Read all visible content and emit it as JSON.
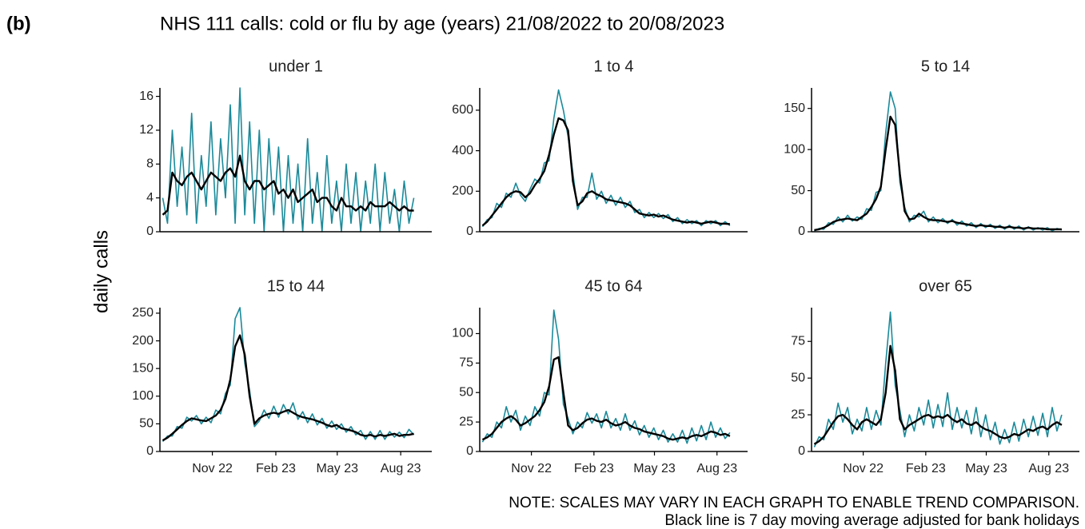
{
  "label": "(b)",
  "title": "NHS 111 calls: cold or flu by age (years) 21/08/2022 to 20/08/2023",
  "ylabel": "daily calls",
  "notes": [
    "NOTE: SCALES MAY VARY IN EACH GRAPH TO ENABLE TREND COMPARISON.",
    "Black line is 7 day moving average adjusted for bank holidays"
  ],
  "chart_data": [
    {
      "type": "line",
      "title": "under 1",
      "x": [
        0,
        7,
        14,
        21,
        28,
        35,
        42,
        49,
        56,
        63,
        70,
        77,
        84,
        91,
        98,
        105,
        112,
        119,
        126,
        133,
        140,
        147,
        154,
        161,
        168,
        175,
        182,
        189,
        196,
        203,
        210,
        217,
        224,
        231,
        238,
        245,
        252,
        259,
        266,
        273,
        280,
        287,
        294,
        301,
        308,
        315,
        322,
        329,
        336,
        343,
        350,
        357,
        364
      ],
      "xlim": [
        -4,
        390
      ],
      "ylim": [
        0,
        17
      ],
      "yticks": [
        0,
        4,
        8,
        12,
        16
      ],
      "series": [
        {
          "color": "#1b8a9a",
          "values": [
            4,
            1,
            12,
            3,
            10,
            2,
            14,
            1,
            9,
            3,
            13,
            2,
            11,
            4,
            15,
            1,
            17,
            2,
            13,
            1,
            12,
            0,
            11,
            2,
            10,
            0,
            9,
            1,
            8,
            0,
            11,
            1,
            7,
            0,
            9,
            1,
            6,
            0,
            8,
            1,
            7,
            0,
            6,
            1,
            8,
            0,
            7,
            1,
            5,
            0,
            6,
            1,
            4
          ]
        },
        {
          "color": "#000000",
          "values": [
            2,
            2.5,
            7,
            6,
            5.5,
            6.5,
            7,
            6,
            5,
            6,
            7,
            6.5,
            6,
            7,
            7.5,
            6.5,
            9,
            6,
            5,
            6,
            6,
            5,
            5.5,
            6,
            4.5,
            5,
            4,
            5,
            3.5,
            4,
            4.5,
            5,
            3.5,
            4,
            4,
            3,
            2.5,
            4,
            3,
            3,
            2.5,
            3,
            2.5,
            3.5,
            3,
            3,
            3,
            3.5,
            3,
            2.5,
            3,
            2.5,
            2.5
          ]
        }
      ]
    },
    {
      "type": "line",
      "title": "1 to 4",
      "x": [
        0,
        7,
        14,
        21,
        28,
        35,
        42,
        49,
        56,
        63,
        70,
        77,
        84,
        91,
        98,
        105,
        112,
        119,
        126,
        133,
        140,
        147,
        154,
        161,
        168,
        175,
        182,
        189,
        196,
        203,
        210,
        217,
        224,
        231,
        238,
        245,
        252,
        259,
        266,
        273,
        280,
        287,
        294,
        301,
        308,
        315,
        322,
        329,
        336,
        343,
        350,
        357,
        364
      ],
      "xlim": [
        -4,
        390
      ],
      "ylim": [
        0,
        710
      ],
      "yticks": [
        0,
        200,
        400,
        600
      ],
      "series": [
        {
          "color": "#1b8a9a",
          "values": [
            25,
            60,
            70,
            140,
            120,
            190,
            170,
            240,
            180,
            150,
            210,
            260,
            240,
            340,
            350,
            560,
            700,
            600,
            470,
            290,
            110,
            170,
            170,
            290,
            160,
            200,
            140,
            180,
            130,
            170,
            120,
            150,
            95,
            110,
            70,
            95,
            70,
            90,
            65,
            85,
            50,
            70,
            40,
            60,
            40,
            55,
            30,
            55,
            40,
            55,
            30,
            50,
            30
          ]
        },
        {
          "color": "#000000",
          "values": [
            30,
            50,
            80,
            110,
            140,
            170,
            190,
            200,
            195,
            170,
            190,
            230,
            260,
            300,
            380,
            480,
            560,
            550,
            500,
            250,
            130,
            150,
            190,
            200,
            185,
            175,
            160,
            155,
            150,
            145,
            140,
            130,
            110,
            90,
            85,
            80,
            85,
            75,
            80,
            70,
            60,
            55,
            50,
            45,
            50,
            45,
            40,
            45,
            50,
            45,
            40,
            40,
            38
          ]
        }
      ]
    },
    {
      "type": "line",
      "title": "5 to 14",
      "x": [
        0,
        7,
        14,
        21,
        28,
        35,
        42,
        49,
        56,
        63,
        70,
        77,
        84,
        91,
        98,
        105,
        112,
        119,
        126,
        133,
        140,
        147,
        154,
        161,
        168,
        175,
        182,
        189,
        196,
        203,
        210,
        217,
        224,
        231,
        238,
        245,
        252,
        259,
        266,
        273,
        280,
        287,
        294,
        301,
        308,
        315,
        322,
        329,
        336,
        343,
        350,
        357,
        364
      ],
      "xlim": [
        -4,
        390
      ],
      "ylim": [
        0,
        175
      ],
      "yticks": [
        0,
        50,
        100,
        150
      ],
      "series": [
        {
          "color": "#1b8a9a",
          "values": [
            1,
            4,
            3,
            11,
            9,
            18,
            12,
            20,
            13,
            18,
            15,
            28,
            26,
            48,
            50,
            120,
            170,
            150,
            60,
            30,
            12,
            20,
            18,
            25,
            12,
            18,
            11,
            16,
            10,
            15,
            8,
            13,
            7,
            11,
            5,
            10,
            5,
            9,
            4,
            8,
            3,
            8,
            3,
            7,
            2,
            6,
            2,
            5,
            2,
            5,
            1,
            4,
            2
          ]
        },
        {
          "color": "#000000",
          "values": [
            2,
            3,
            5,
            8,
            12,
            14,
            15,
            16,
            15,
            14,
            18,
            22,
            30,
            40,
            55,
            100,
            140,
            130,
            70,
            25,
            15,
            16,
            22,
            18,
            15,
            14,
            14,
            13,
            12,
            13,
            11,
            10,
            9,
            8,
            7,
            8,
            7,
            7,
            6,
            6,
            5,
            6,
            5,
            5,
            4,
            5,
            4,
            4,
            4,
            3,
            3,
            3,
            3
          ]
        }
      ]
    },
    {
      "type": "line",
      "title": "15 to 44",
      "x": [
        0,
        7,
        14,
        21,
        28,
        35,
        42,
        49,
        56,
        63,
        70,
        77,
        84,
        91,
        98,
        105,
        112,
        119,
        126,
        133,
        140,
        147,
        154,
        161,
        168,
        175,
        182,
        189,
        196,
        203,
        210,
        217,
        224,
        231,
        238,
        245,
        252,
        259,
        266,
        273,
        280,
        287,
        294,
        301,
        308,
        315,
        322,
        329,
        336,
        343,
        350,
        357,
        364
      ],
      "xlim": [
        -4,
        390
      ],
      "ylim": [
        0,
        260
      ],
      "yticks": [
        0,
        50,
        100,
        150,
        200,
        250
      ],
      "xticks": [
        {
          "value": 72,
          "label": "Nov 22"
        },
        {
          "value": 164,
          "label": "Feb 23"
        },
        {
          "value": 253,
          "label": "May 23"
        },
        {
          "value": 345,
          "label": "Aug 23"
        }
      ],
      "series": [
        {
          "color": "#1b8a9a",
          "values": [
            18,
            28,
            28,
            45,
            42,
            62,
            55,
            65,
            50,
            62,
            52,
            75,
            68,
            105,
            120,
            240,
            260,
            160,
            110,
            45,
            55,
            75,
            60,
            82,
            62,
            85,
            68,
            88,
            58,
            72,
            52,
            68,
            48,
            60,
            42,
            55,
            40,
            50,
            35,
            45,
            30,
            38,
            22,
            36,
            22,
            38,
            22,
            36,
            26,
            35,
            25,
            40,
            30
          ]
        },
        {
          "color": "#000000",
          "values": [
            20,
            25,
            32,
            40,
            48,
            55,
            60,
            58,
            56,
            55,
            60,
            65,
            75,
            95,
            130,
            190,
            210,
            175,
            100,
            50,
            60,
            65,
            68,
            70,
            68,
            72,
            75,
            70,
            65,
            62,
            60,
            58,
            55,
            52,
            48,
            45,
            48,
            42,
            40,
            38,
            35,
            30,
            28,
            30,
            27,
            30,
            28,
            30,
            32,
            28,
            30,
            30,
            32
          ]
        }
      ]
    },
    {
      "type": "line",
      "title": "45 to 64",
      "x": [
        0,
        7,
        14,
        21,
        28,
        35,
        42,
        49,
        56,
        63,
        70,
        77,
        84,
        91,
        98,
        105,
        112,
        119,
        126,
        133,
        140,
        147,
        154,
        161,
        168,
        175,
        182,
        189,
        196,
        203,
        210,
        217,
        224,
        231,
        238,
        245,
        252,
        259,
        266,
        273,
        280,
        287,
        294,
        301,
        308,
        315,
        322,
        329,
        336,
        343,
        350,
        357,
        364
      ],
      "xlim": [
        -4,
        390
      ],
      "ylim": [
        0,
        122
      ],
      "yticks": [
        0,
        25,
        50,
        75,
        100
      ],
      "xticks": [
        {
          "value": 72,
          "label": "Nov 22"
        },
        {
          "value": 164,
          "label": "Feb 23"
        },
        {
          "value": 253,
          "label": "May 23"
        },
        {
          "value": 345,
          "label": "Aug 23"
        }
      ],
      "series": [
        {
          "color": "#1b8a9a",
          "values": [
            8,
            15,
            12,
            25,
            20,
            38,
            25,
            35,
            18,
            30,
            22,
            38,
            30,
            50,
            48,
            120,
            95,
            40,
            28,
            15,
            25,
            20,
            33,
            24,
            32,
            20,
            34,
            20,
            28,
            18,
            32,
            18,
            26,
            14,
            22,
            12,
            20,
            10,
            18,
            8,
            15,
            8,
            18,
            7,
            20,
            9,
            22,
            10,
            25,
            12,
            20,
            11,
            16
          ]
        },
        {
          "color": "#000000",
          "values": [
            10,
            12,
            15,
            20,
            25,
            28,
            30,
            27,
            22,
            24,
            27,
            30,
            35,
            42,
            55,
            78,
            80,
            50,
            22,
            18,
            20,
            24,
            27,
            28,
            26,
            25,
            27,
            24,
            22,
            23,
            25,
            22,
            20,
            19,
            17,
            16,
            15,
            14,
            13,
            11,
            10,
            11,
            12,
            11,
            13,
            14,
            13,
            15,
            17,
            16,
            14,
            15,
            13
          ]
        }
      ]
    },
    {
      "type": "line",
      "title": "over 65",
      "x": [
        0,
        7,
        14,
        21,
        28,
        35,
        42,
        49,
        56,
        63,
        70,
        77,
        84,
        91,
        98,
        105,
        112,
        119,
        126,
        133,
        140,
        147,
        154,
        161,
        168,
        175,
        182,
        189,
        196,
        203,
        210,
        217,
        224,
        231,
        238,
        245,
        252,
        259,
        266,
        273,
        280,
        287,
        294,
        301,
        308,
        315,
        322,
        329,
        336,
        343,
        350,
        357,
        364
      ],
      "xlim": [
        -4,
        390
      ],
      "ylim": [
        0,
        98
      ],
      "yticks": [
        0,
        25,
        50,
        75
      ],
      "xticks": [
        {
          "value": 72,
          "label": "Nov 22"
        },
        {
          "value": 164,
          "label": "Feb 23"
        },
        {
          "value": 253,
          "label": "May 23"
        },
        {
          "value": 345,
          "label": "Aug 23"
        }
      ],
      "series": [
        {
          "color": "#1b8a9a",
          "values": [
            3,
            10,
            8,
            22,
            15,
            33,
            20,
            30,
            12,
            22,
            14,
            30,
            15,
            28,
            18,
            60,
            95,
            45,
            28,
            10,
            25,
            14,
            30,
            18,
            35,
            16,
            32,
            17,
            40,
            15,
            30,
            16,
            28,
            12,
            30,
            10,
            25,
            8,
            20,
            5,
            15,
            6,
            20,
            7,
            22,
            10,
            24,
            11,
            26,
            10,
            30,
            14,
            25
          ]
        },
        {
          "color": "#000000",
          "values": [
            5,
            7,
            10,
            15,
            20,
            24,
            25,
            22,
            18,
            15,
            20,
            22,
            20,
            18,
            22,
            40,
            72,
            55,
            22,
            15,
            18,
            20,
            22,
            24,
            25,
            23,
            24,
            23,
            25,
            22,
            20,
            22,
            19,
            18,
            20,
            17,
            15,
            14,
            12,
            10,
            9,
            10,
            12,
            11,
            13,
            15,
            14,
            16,
            17,
            15,
            18,
            20,
            18
          ]
        }
      ]
    }
  ]
}
